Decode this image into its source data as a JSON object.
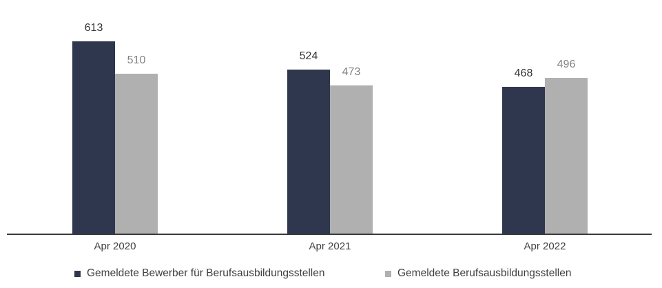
{
  "chart_data": {
    "type": "bar",
    "title": "",
    "xlabel": "",
    "ylabel": "",
    "categories": [
      "Apr 2020",
      "Apr 2021",
      "Apr 2022"
    ],
    "series": [
      {
        "name": "Gemeldete Bewerber für Berufsausbildungsstellen",
        "color": "#2e374d",
        "label_color": "#333333",
        "values": [
          613,
          524,
          468
        ]
      },
      {
        "name": "Gemeldete Berufsausbildungsstellen",
        "color": "#b0b0b0",
        "label_color": "#808080",
        "values": [
          510,
          473,
          496
        ]
      }
    ],
    "ylim": [
      0,
      613
    ],
    "grid": false,
    "legend_position": "bottom"
  },
  "labels": {
    "cat0": "Apr 2020",
    "cat1": "Apr 2021",
    "cat2": "Apr 2022",
    "s0": "Gemeldete Bewerber für Berufsausbildungsstellen",
    "s1": "Gemeldete Berufsausbildungsstellen",
    "v00": "613",
    "v01": "524",
    "v02": "468",
    "v10": "510",
    "v11": "473",
    "v12": "496"
  }
}
